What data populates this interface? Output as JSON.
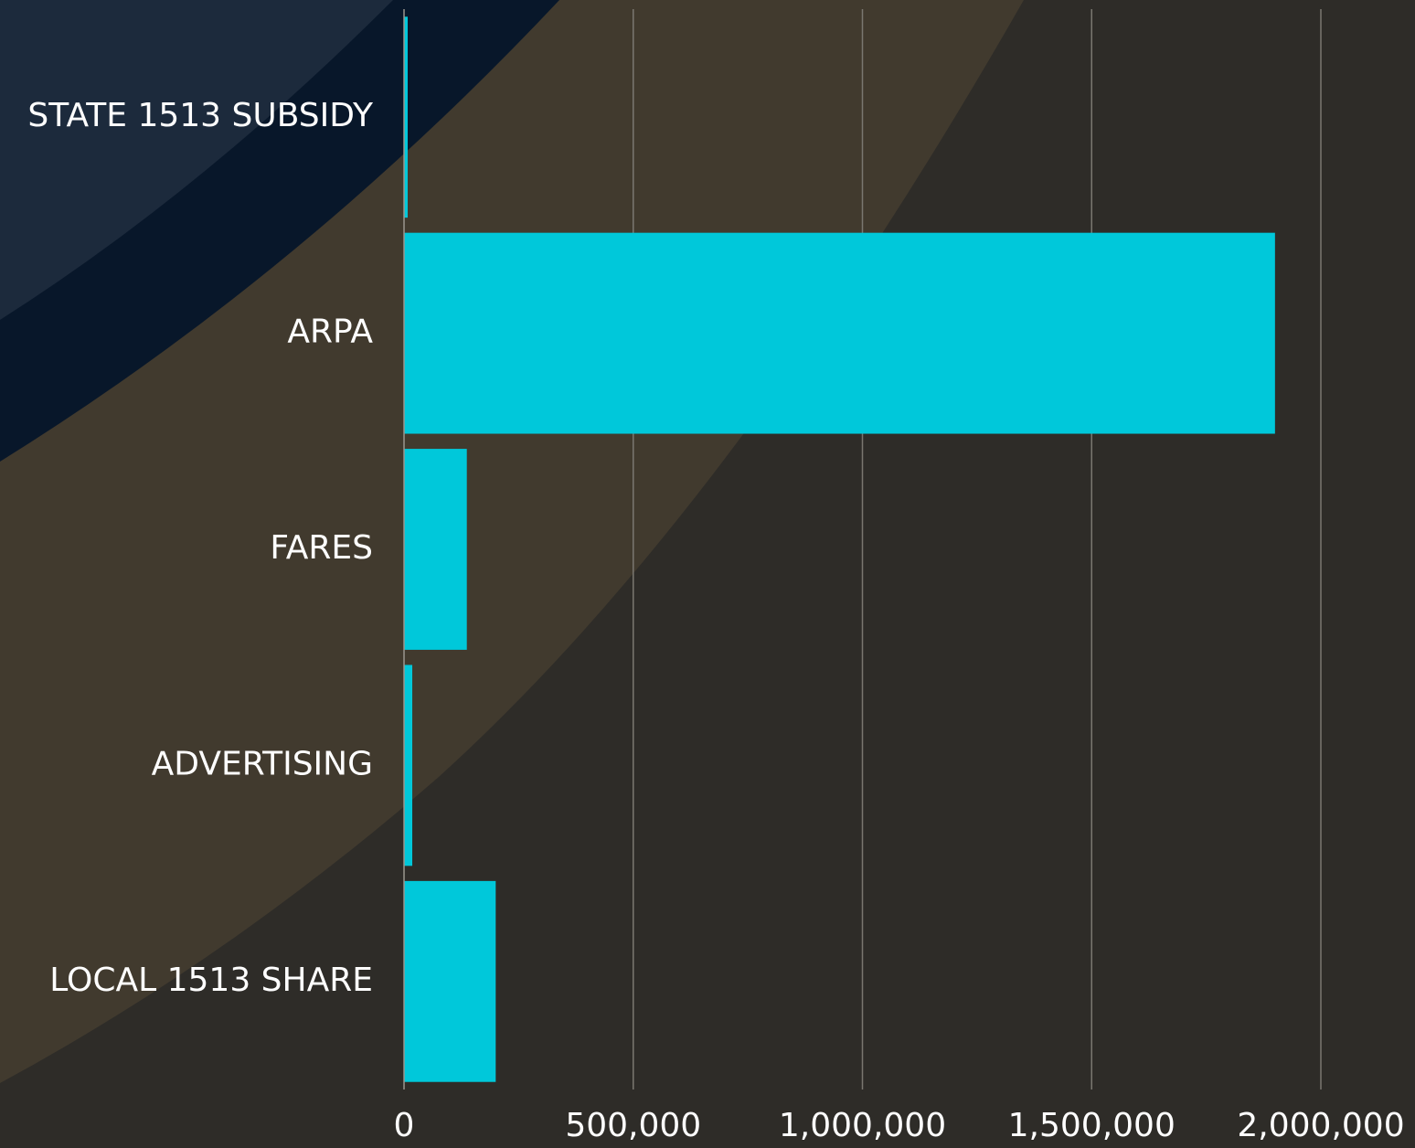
{
  "chart_data": {
    "type": "bar",
    "orientation": "horizontal",
    "categories": [
      "STATE 1513 SUBSIDY",
      "ARPA",
      "FARES",
      "ADVERTISING",
      "LOCAL 1513 SHARE"
    ],
    "values": [
      8000,
      1900000,
      137000,
      18000,
      200000
    ],
    "color": "#00c8da",
    "xlim": [
      0,
      2000000
    ],
    "xticks": [
      0,
      {
        "value": 500000,
        "label": "500,000"
      },
      {
        "value": 1000000,
        "label": "1,000,000"
      },
      {
        "value": 1500000,
        "label": "1,500,000"
      },
      {
        "value": 2000000,
        "label": "2,000,000"
      }
    ],
    "grid": true
  }
}
